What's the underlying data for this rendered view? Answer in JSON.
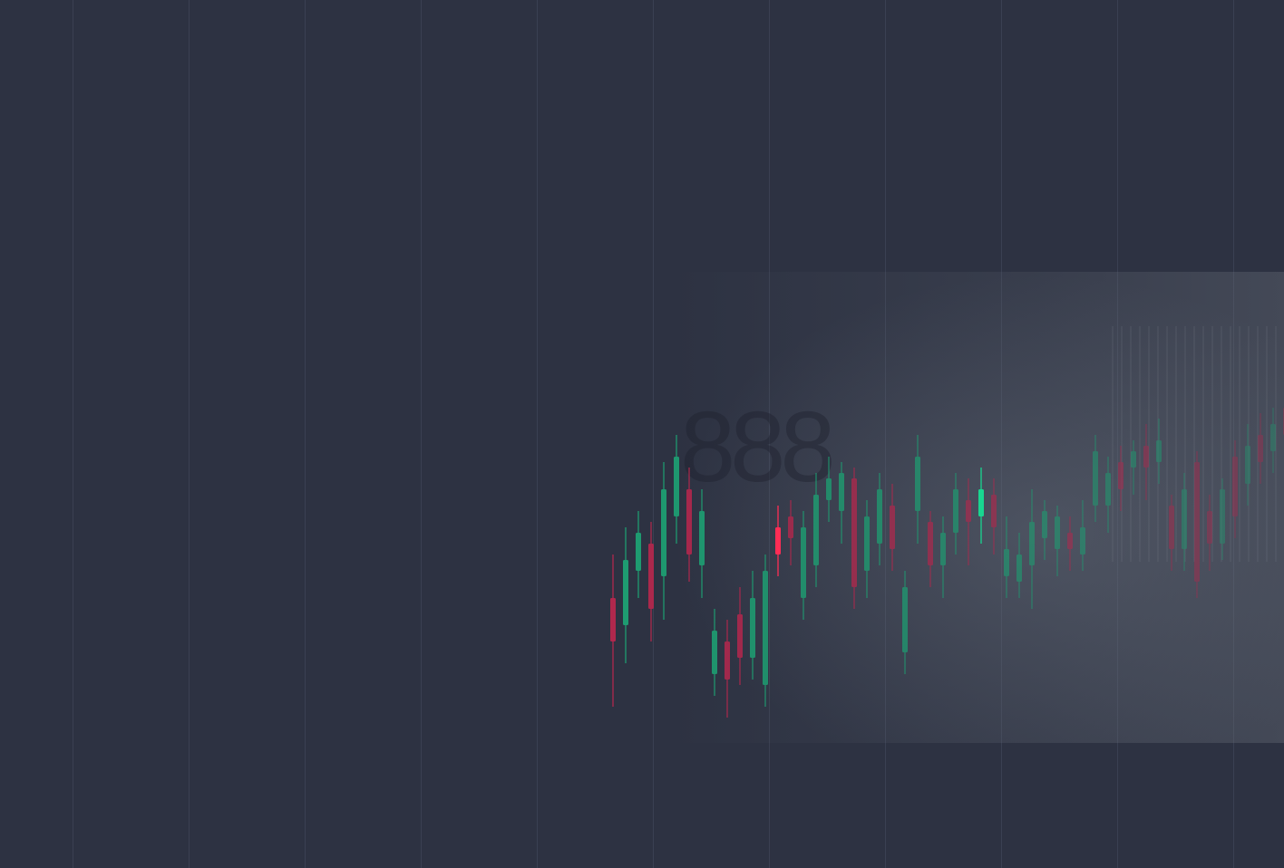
{
  "hero_background": {
    "colors": {
      "background": "#2d3242",
      "grid_line": "#3a4052",
      "bull": "#1e9e72",
      "bear": "#b0284d",
      "highlight_bull": "#19d690",
      "highlight_bear": "#ff2d55"
    },
    "photo_sign_text": "888"
  },
  "candles": [
    {
      "o": 0.4,
      "c": 0.32,
      "h": 0.48,
      "l": 0.2
    },
    {
      "o": 0.35,
      "c": 0.47,
      "h": 0.53,
      "l": 0.28
    },
    {
      "o": 0.45,
      "c": 0.52,
      "h": 0.56,
      "l": 0.4
    },
    {
      "o": 0.5,
      "c": 0.38,
      "h": 0.54,
      "l": 0.32
    },
    {
      "o": 0.44,
      "c": 0.6,
      "h": 0.65,
      "l": 0.36
    },
    {
      "o": 0.55,
      "c": 0.66,
      "h": 0.7,
      "l": 0.5
    },
    {
      "o": 0.6,
      "c": 0.48,
      "h": 0.64,
      "l": 0.43
    },
    {
      "o": 0.46,
      "c": 0.56,
      "h": 0.6,
      "l": 0.4
    },
    {
      "o": 0.26,
      "c": 0.34,
      "h": 0.38,
      "l": 0.22
    },
    {
      "o": 0.32,
      "c": 0.25,
      "h": 0.36,
      "l": 0.18
    },
    {
      "o": 0.37,
      "c": 0.29,
      "h": 0.42,
      "l": 0.24
    },
    {
      "o": 0.29,
      "c": 0.4,
      "h": 0.45,
      "l": 0.25
    },
    {
      "o": 0.24,
      "c": 0.45,
      "h": 0.48,
      "l": 0.2
    },
    {
      "o": 0.53,
      "c": 0.48,
      "h": 0.57,
      "l": 0.44,
      "hl": true
    },
    {
      "o": 0.55,
      "c": 0.51,
      "h": 0.58,
      "l": 0.46
    },
    {
      "o": 0.4,
      "c": 0.53,
      "h": 0.56,
      "l": 0.36
    },
    {
      "o": 0.46,
      "c": 0.59,
      "h": 0.63,
      "l": 0.42
    },
    {
      "o": 0.58,
      "c": 0.62,
      "h": 0.66,
      "l": 0.54
    },
    {
      "o": 0.56,
      "c": 0.63,
      "h": 0.65,
      "l": 0.5
    },
    {
      "o": 0.62,
      "c": 0.42,
      "h": 0.64,
      "l": 0.38
    },
    {
      "o": 0.45,
      "c": 0.55,
      "h": 0.58,
      "l": 0.4
    },
    {
      "o": 0.5,
      "c": 0.6,
      "h": 0.63,
      "l": 0.46
    },
    {
      "o": 0.57,
      "c": 0.49,
      "h": 0.61,
      "l": 0.45
    },
    {
      "o": 0.3,
      "c": 0.42,
      "h": 0.45,
      "l": 0.26
    },
    {
      "o": 0.56,
      "c": 0.66,
      "h": 0.7,
      "l": 0.5
    },
    {
      "o": 0.54,
      "c": 0.46,
      "h": 0.56,
      "l": 0.42
    },
    {
      "o": 0.46,
      "c": 0.52,
      "h": 0.55,
      "l": 0.4
    },
    {
      "o": 0.52,
      "c": 0.6,
      "h": 0.63,
      "l": 0.48
    },
    {
      "o": 0.58,
      "c": 0.54,
      "h": 0.62,
      "l": 0.46
    },
    {
      "o": 0.55,
      "c": 0.6,
      "h": 0.64,
      "l": 0.5,
      "hl": true
    },
    {
      "o": 0.59,
      "c": 0.53,
      "h": 0.62,
      "l": 0.48
    },
    {
      "o": 0.44,
      "c": 0.49,
      "h": 0.55,
      "l": 0.4
    },
    {
      "o": 0.43,
      "c": 0.48,
      "h": 0.52,
      "l": 0.4
    },
    {
      "o": 0.46,
      "c": 0.54,
      "h": 0.6,
      "l": 0.38
    },
    {
      "o": 0.51,
      "c": 0.56,
      "h": 0.58,
      "l": 0.47
    },
    {
      "o": 0.49,
      "c": 0.55,
      "h": 0.57,
      "l": 0.44
    },
    {
      "o": 0.52,
      "c": 0.49,
      "h": 0.55,
      "l": 0.45
    },
    {
      "o": 0.48,
      "c": 0.53,
      "h": 0.58,
      "l": 0.45
    },
    {
      "o": 0.57,
      "c": 0.67,
      "h": 0.7,
      "l": 0.54
    },
    {
      "o": 0.57,
      "c": 0.63,
      "h": 0.66,
      "l": 0.52
    },
    {
      "o": 0.65,
      "c": 0.6,
      "h": 0.68,
      "l": 0.56
    },
    {
      "o": 0.64,
      "c": 0.67,
      "h": 0.69,
      "l": 0.59
    },
    {
      "o": 0.68,
      "c": 0.64,
      "h": 0.72,
      "l": 0.58
    },
    {
      "o": 0.65,
      "c": 0.69,
      "h": 0.73,
      "l": 0.61
    },
    {
      "o": 0.57,
      "c": 0.49,
      "h": 0.59,
      "l": 0.45
    },
    {
      "o": 0.49,
      "c": 0.6,
      "h": 0.63,
      "l": 0.45
    },
    {
      "o": 0.65,
      "c": 0.43,
      "h": 0.67,
      "l": 0.4
    },
    {
      "o": 0.56,
      "c": 0.5,
      "h": 0.59,
      "l": 0.45
    },
    {
      "o": 0.5,
      "c": 0.6,
      "h": 0.62,
      "l": 0.47
    },
    {
      "o": 0.66,
      "c": 0.55,
      "h": 0.69,
      "l": 0.51
    },
    {
      "o": 0.61,
      "c": 0.68,
      "h": 0.72,
      "l": 0.57
    },
    {
      "o": 0.7,
      "c": 0.65,
      "h": 0.74,
      "l": 0.61
    },
    {
      "o": 0.67,
      "c": 0.72,
      "h": 0.75,
      "l": 0.63
    },
    {
      "o": 0.75,
      "c": 0.7,
      "h": 0.78,
      "l": 0.66
    }
  ]
}
